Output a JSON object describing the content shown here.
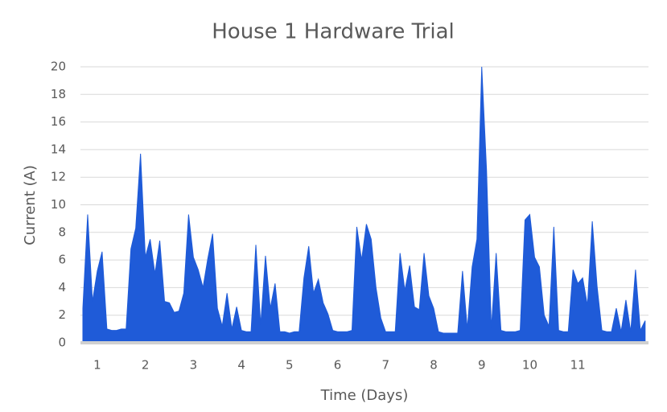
{
  "chart_data": {
    "type": "area",
    "title": "House 1 Hardware Trial",
    "x_label": "Time (Days)",
    "y_label": "Current (A)",
    "color": "#1f5bd8",
    "grid": true,
    "xlim": [
      0.65,
      12.47
    ],
    "ylim": [
      0,
      20
    ],
    "xticks": [
      1,
      2,
      3,
      4,
      5,
      6,
      7,
      8,
      9,
      10,
      11
    ],
    "yticks": [
      0,
      2,
      4,
      6,
      8,
      10,
      12,
      14,
      16,
      18,
      20
    ],
    "x": [
      0.7,
      0.8,
      0.9,
      1.0,
      1.1,
      1.2,
      1.3,
      1.4,
      1.5,
      1.6,
      1.7,
      1.8,
      1.9,
      2.0,
      2.1,
      2.2,
      2.3,
      2.4,
      2.5,
      2.6,
      2.7,
      2.8,
      2.9,
      3.0,
      3.1,
      3.2,
      3.3,
      3.4,
      3.5,
      3.6,
      3.7,
      3.8,
      3.9,
      4.0,
      4.1,
      4.2,
      4.3,
      4.4,
      4.5,
      4.6,
      4.7,
      4.8,
      4.9,
      5.0,
      5.1,
      5.2,
      5.3,
      5.4,
      5.5,
      5.6,
      5.7,
      5.8,
      5.9,
      6.0,
      6.1,
      6.2,
      6.3,
      6.4,
      6.5,
      6.6,
      6.7,
      6.8,
      6.9,
      7.0,
      7.1,
      7.2,
      7.3,
      7.4,
      7.5,
      7.6,
      7.7,
      7.8,
      7.9,
      8.0,
      8.1,
      8.2,
      8.3,
      8.4,
      8.5,
      8.6,
      8.7,
      8.8,
      8.9,
      9.0,
      9.1,
      9.2,
      9.3,
      9.4,
      9.5,
      9.6,
      9.7,
      9.8,
      9.9,
      10.0,
      10.1,
      10.2,
      10.3,
      10.4,
      10.5,
      10.6,
      10.7,
      10.8,
      10.9,
      11.0,
      11.1,
      11.2,
      11.3,
      11.4,
      11.5,
      11.6,
      11.7,
      11.8,
      11.9,
      12.0,
      12.1,
      12.2,
      12.3,
      12.4
    ],
    "values": [
      2.5,
      9.3,
      3,
      5.2,
      6.6,
      1,
      0.9,
      0.9,
      1,
      1,
      6.8,
      8.3,
      13.7,
      6.2,
      7.5,
      5,
      7.4,
      3,
      2.9,
      2.2,
      2.3,
      3.6,
      9.3,
      6.2,
      5.3,
      4,
      6.1,
      7.9,
      2.5,
      1.2,
      3.6,
      1,
      2.6,
      0.9,
      0.8,
      0.8,
      7.1,
      1.3,
      6.3,
      2.5,
      4.3,
      0.8,
      0.8,
      0.7,
      0.8,
      0.8,
      4.7,
      7,
      3.6,
      4.6,
      2.9,
      2.1,
      0.9,
      0.8,
      0.8,
      0.8,
      0.9,
      8.4,
      6,
      8.6,
      7.5,
      4,
      1.8,
      0.8,
      0.8,
      0.8,
      6.5,
      3.8,
      5.6,
      2.6,
      2.4,
      6.5,
      3.4,
      2.5,
      0.8,
      0.7,
      0.7,
      0.7,
      0.7,
      5.2,
      1,
      5.5,
      7.5,
      20,
      12.5,
      1,
      6.5,
      0.9,
      0.8,
      0.8,
      0.8,
      0.9,
      8.9,
      9.3,
      6.2,
      5.5,
      2,
      1.2,
      8.4,
      0.9,
      0.8,
      0.8,
      5.3,
      4.3,
      4.7,
      2.7,
      8.8,
      4.1,
      0.9,
      0.8,
      0.8,
      2.5,
      0.8,
      3.1,
      0.8,
      5.3,
      0.9,
      1.6
    ]
  }
}
